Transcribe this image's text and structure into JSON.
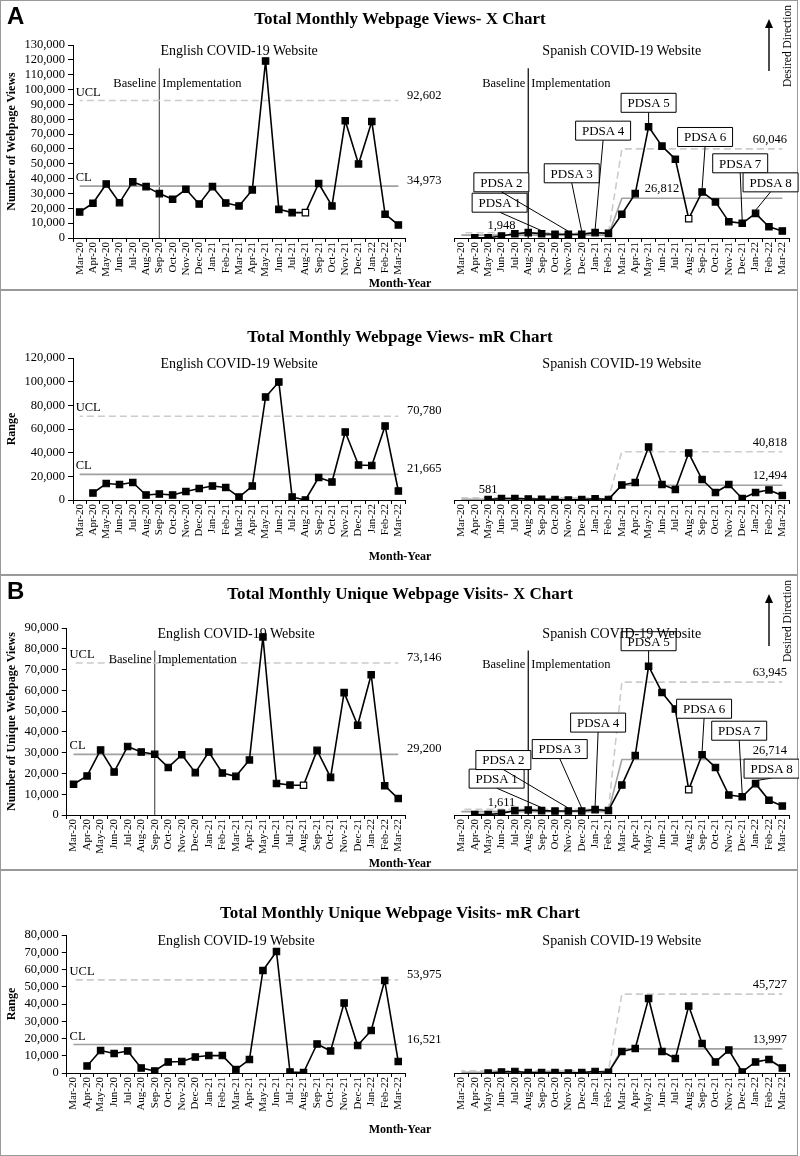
{
  "chart_data": [
    {
      "type": "line",
      "title": "Total Monthly Webpage Views- X Chart",
      "subtitle": "English COVID-19 Website",
      "xlabel": "Month-Year",
      "ylabel": "Number of Webpage Views",
      "categories": [
        "Mar-20",
        "Apr-20",
        "May-20",
        "Jun-20",
        "Jul-20",
        "Aug-20",
        "Sep-20",
        "Oct-20",
        "Nov-20",
        "Dec-20",
        "Jan-21",
        "Feb-21",
        "Mar-21",
        "Apr-21",
        "May-21",
        "Jun-21",
        "Jul-21",
        "Aug-21",
        "Sep-21",
        "Oct-21",
        "Nov-21",
        "Dec-21",
        "Jan-22",
        "Feb-22",
        "Mar-22"
      ],
      "ylim": [
        0,
        130000
      ],
      "yticks": [
        {
          "value": 0,
          "label": "0"
        },
        {
          "value": 10000,
          "label": "10,000"
        },
        {
          "value": 20000,
          "label": "20,000"
        },
        {
          "value": 30000,
          "label": "30,000"
        },
        {
          "value": 40000,
          "label": "40,000"
        },
        {
          "value": 50000,
          "label": "50,000"
        },
        {
          "value": 60000,
          "label": "60,000"
        },
        {
          "value": 70000,
          "label": "70,000"
        },
        {
          "value": 80000,
          "label": "80,000"
        },
        {
          "value": 90000,
          "label": "90,000"
        },
        {
          "value": 100000,
          "label": "100,000"
        },
        {
          "value": 110000,
          "label": "110,000"
        },
        {
          "value": 120000,
          "label": "120,000"
        },
        {
          "value": 130000,
          "label": "130,000"
        }
      ],
      "marker": "square",
      "series": [
        {
          "color": "#000000",
          "values": [
            17500,
            23400,
            36400,
            23800,
            37800,
            34600,
            29900,
            26100,
            32800,
            22900,
            34600,
            23600,
            21600,
            32400,
            119200,
            19300,
            17100,
            17100,
            36700,
            21600,
            79000,
            49900,
            78500,
            16000,
            8800
          ],
          "colors": [
            "#000000",
            "#000000",
            "#000000",
            "#000000",
            "#000000",
            "#000000",
            "#000000",
            "#000000",
            "#000000",
            "#000000",
            "#000000",
            "#000000",
            "#000000",
            "#000000",
            "#000000",
            "#000000",
            "#000000",
            "#ffffff",
            "#000000",
            "#000000",
            "#000000",
            "#000000",
            "#000000",
            "#000000",
            "#000000"
          ]
        },
        {
          "name": "CL",
          "color": "#a0a0a0",
          "marker": "none",
          "values": [
            34973,
            34973,
            34973,
            34973,
            34973,
            34973,
            34973,
            34973,
            34973,
            34973,
            34973,
            34973,
            34973,
            34973,
            34973,
            34973,
            34973,
            34973,
            34973,
            34973,
            34973,
            34973,
            34973,
            34973,
            34973
          ],
          "value_labels": [
            null,
            null,
            null,
            null,
            null,
            null,
            null,
            null,
            null,
            null,
            null,
            null,
            null,
            null,
            null,
            null,
            null,
            null,
            null,
            null,
            null,
            null,
            null,
            null,
            "34,973"
          ]
        },
        {
          "name": "UCL",
          "color": "#cccccc",
          "marker": "none",
          "line_style": "dashed",
          "values": [
            92602,
            92602,
            92602,
            92602,
            92602,
            92602,
            92602,
            92602,
            92602,
            92602,
            92602,
            92602,
            92602,
            92602,
            92602,
            92602,
            92602,
            92602,
            92602,
            92602,
            92602,
            92602,
            92602,
            92602,
            92602
          ],
          "value_labels": [
            null,
            null,
            null,
            null,
            null,
            null,
            null,
            null,
            null,
            null,
            null,
            null,
            null,
            null,
            null,
            null,
            null,
            null,
            null,
            null,
            null,
            null,
            null,
            null,
            "92,602"
          ]
        }
      ],
      "ref_lines": [
        {
          "axis": "x",
          "value": "Sep-20",
          "color": "#555555"
        }
      ],
      "annotations": [
        "A",
        "Baseline",
        "Implementation"
      ]
    },
    {
      "type": "line",
      "subtitle": "Spanish COVID-19 Website",
      "categories": [
        "Mar-20",
        "Apr-20",
        "May-20",
        "Jun-20",
        "Jul-20",
        "Aug-20",
        "Sep-20",
        "Oct-20",
        "Nov-20",
        "Dec-20",
        "Jan-21",
        "Feb-21",
        "Mar-21",
        "Apr-21",
        "May-21",
        "Jun-21",
        "Jul-21",
        "Aug-21",
        "Sep-21",
        "Oct-21",
        "Nov-21",
        "Dec-21",
        "Jan-22",
        "Feb-22",
        "Mar-22"
      ],
      "ylim": [
        0,
        130000
      ],
      "yticks": [
        {
          "value": 0,
          "label": "0"
        },
        {
          "value": 10000,
          "label": "10,000"
        },
        {
          "value": 20000,
          "label": "20,000"
        },
        {
          "value": 30000,
          "label": "30,000"
        },
        {
          "value": 40000,
          "label": "40,000"
        },
        {
          "value": 50000,
          "label": "50,000"
        },
        {
          "value": 60000,
          "label": "60,000"
        },
        {
          "value": 70000,
          "label": "70,000"
        },
        {
          "value": 80000,
          "label": "80,000"
        },
        {
          "value": 90000,
          "label": "90,000"
        },
        {
          "value": 100000,
          "label": "100,000"
        },
        {
          "value": 110000,
          "label": "110,000"
        },
        {
          "value": 120000,
          "label": "120,000"
        },
        {
          "value": 130000,
          "label": "130,000"
        }
      ],
      "tick_labels": "x",
      "marker": "square",
      "series": [
        {
          "color": "#000000",
          "values": [
            null,
            200,
            200,
            1300,
            2900,
            3600,
            2900,
            2500,
            2500,
            2500,
            3600,
            3100,
            16000,
            29900,
            74900,
            61900,
            53100,
            13000,
            31000,
            24300,
            11000,
            9900,
            16600,
            7600,
            4700
          ],
          "colors": [
            "#000000",
            "#000000",
            "#000000",
            "#000000",
            "#000000",
            "#000000",
            "#000000",
            "#000000",
            "#000000",
            "#000000",
            "#000000",
            "#000000",
            "#000000",
            "#000000",
            "#000000",
            "#000000",
            "#000000",
            "#ffffff",
            "#000000",
            "#000000",
            "#000000",
            "#000000",
            "#000000",
            "#000000",
            "#000000"
          ]
        },
        {
          "color": "#a0a0a0",
          "marker": "none",
          "values": [
            1948,
            1948,
            1948,
            1948,
            1948,
            1948,
            1948,
            1948,
            1948,
            1948,
            1948,
            1948,
            26812,
            26812,
            26812,
            26812,
            26812,
            26812,
            26812,
            26812,
            26812,
            26812,
            26812,
            26812,
            26812
          ],
          "value_labels": [
            null,
            null,
            null,
            "1,948",
            null,
            null,
            null,
            null,
            null,
            null,
            null,
            null,
            null,
            null,
            null,
            "26,812",
            null,
            null,
            null,
            null,
            null,
            null,
            null,
            null,
            null
          ]
        },
        {
          "color": "#cccccc",
          "marker": "none",
          "line_style": "dashed",
          "values": [
            3500,
            3500,
            3500,
            3500,
            3500,
            3500,
            3500,
            3500,
            3500,
            3500,
            3500,
            3500,
            60046,
            60046,
            60046,
            60046,
            60046,
            60046,
            60046,
            60046,
            60046,
            60046,
            60046,
            60046,
            60046
          ],
          "value_labels": [
            null,
            null,
            null,
            null,
            null,
            null,
            null,
            null,
            null,
            null,
            null,
            null,
            null,
            null,
            null,
            null,
            null,
            null,
            null,
            null,
            null,
            null,
            null,
            null,
            "60,046"
          ]
        }
      ],
      "ref_lines": [
        {
          "axis": "x",
          "value": "Aug-20",
          "color": "#000000"
        }
      ],
      "annotations": [
        "Baseline",
        "Implementation",
        "Desired Direction",
        {
          "text": "PDSA 1",
          "x": "Sep-20",
          "y": 2900
        },
        {
          "text": "PDSA 2",
          "x": "Nov-20",
          "y": 2500
        },
        {
          "text": "PDSA 3",
          "x": "Dec-20",
          "y": 2500
        },
        {
          "text": "PDSA 4",
          "x": "Jan-21",
          "y": 3600
        },
        {
          "text": "PDSA 5",
          "x": "May-21",
          "y": 74900
        },
        {
          "text": "PDSA 6",
          "x": "Sep-21",
          "y": 31000
        },
        {
          "text": "PDSA 7",
          "x": "Dec-21",
          "y": 9900
        },
        {
          "text": "PDSA 8",
          "x": "Jan-22",
          "y": 16600
        }
      ]
    },
    {
      "type": "line",
      "title": "Total Monthly Webpage Views- mR Chart",
      "subtitle": "English COVID-19 Website",
      "xlabel": "Month-Year",
      "ylabel": "Range",
      "categories": [
        "Mar-20",
        "Apr-20",
        "May-20",
        "Jun-20",
        "Jul-20",
        "Aug-20",
        "Sep-20",
        "Oct-20",
        "Nov-20",
        "Dec-20",
        "Jan-21",
        "Feb-21",
        "Mar-21",
        "Apr-21",
        "May-21",
        "Jun-21",
        "Jul-21",
        "Aug-21",
        "Sep-21",
        "Oct-21",
        "Nov-21",
        "Dec-21",
        "Jan-22",
        "Feb-22",
        "Mar-22"
      ],
      "ylim": [
        0,
        120000
      ],
      "yticks": [
        {
          "value": 0,
          "label": "0"
        },
        {
          "value": 20000,
          "label": "20,000"
        },
        {
          "value": 40000,
          "label": "40,000"
        },
        {
          "value": 60000,
          "label": "60,000"
        },
        {
          "value": 80000,
          "label": "80,000"
        },
        {
          "value": 100000,
          "label": "100,000"
        },
        {
          "value": 120000,
          "label": "120,000"
        }
      ],
      "marker": "square",
      "series": [
        {
          "color": "#000000",
          "values": [
            null,
            5900,
            13900,
            13100,
            14800,
            4200,
            5100,
            4200,
            7200,
            9700,
            11800,
            10600,
            2500,
            11800,
            87000,
            99700,
            2500,
            0,
            19000,
            15200,
            57500,
            29600,
            29200,
            62500,
            7600
          ]
        },
        {
          "name": "CL",
          "color": "#a0a0a0",
          "marker": "none",
          "values": [
            21665,
            21665,
            21665,
            21665,
            21665,
            21665,
            21665,
            21665,
            21665,
            21665,
            21665,
            21665,
            21665,
            21665,
            21665,
            21665,
            21665,
            21665,
            21665,
            21665,
            21665,
            21665,
            21665,
            21665,
            21665
          ],
          "value_labels": [
            null,
            null,
            null,
            null,
            null,
            null,
            null,
            null,
            null,
            null,
            null,
            null,
            null,
            null,
            null,
            null,
            null,
            null,
            null,
            null,
            null,
            null,
            null,
            null,
            "21,665"
          ]
        },
        {
          "name": "UCL",
          "color": "#cccccc",
          "marker": "none",
          "line_style": "dashed",
          "values": [
            70780,
            70780,
            70780,
            70780,
            70780,
            70780,
            70780,
            70780,
            70780,
            70780,
            70780,
            70780,
            70780,
            70780,
            70780,
            70780,
            70780,
            70780,
            70780,
            70780,
            70780,
            70780,
            70780,
            70780,
            70780
          ],
          "value_labels": [
            null,
            null,
            null,
            null,
            null,
            null,
            null,
            null,
            null,
            null,
            null,
            null,
            null,
            null,
            null,
            null,
            null,
            null,
            null,
            null,
            null,
            null,
            null,
            null,
            "70,780"
          ]
        }
      ]
    },
    {
      "type": "line",
      "subtitle": "Spanish COVID-19 Website",
      "categories": [
        "Mar-20",
        "Apr-20",
        "May-20",
        "Jun-20",
        "Jul-20",
        "Aug-20",
        "Sep-20",
        "Oct-20",
        "Nov-20",
        "Dec-20",
        "Jan-21",
        "Feb-21",
        "Mar-21",
        "Apr-21",
        "May-21",
        "Jun-21",
        "Jul-21",
        "Aug-21",
        "Sep-21",
        "Oct-21",
        "Nov-21",
        "Dec-21",
        "Jan-22",
        "Feb-22",
        "Mar-22"
      ],
      "ylim": [
        0,
        120000
      ],
      "yticks": [
        {
          "value": 0,
          "label": "0"
        },
        {
          "value": 20000,
          "label": "20,000"
        },
        {
          "value": 40000,
          "label": "40,000"
        },
        {
          "value": 60000,
          "label": "60,000"
        },
        {
          "value": 80000,
          "label": "80,000"
        },
        {
          "value": 100000,
          "label": "100,000"
        },
        {
          "value": 120000,
          "label": "120,000"
        }
      ],
      "tick_labels": "x",
      "marker": "square",
      "series": [
        {
          "color": "#000000",
          "values": [
            null,
            null,
            400,
            1300,
            1300,
            800,
            700,
            400,
            0,
            400,
            1100,
            500,
            12700,
            14800,
            44800,
            13100,
            8900,
            39700,
            17300,
            6300,
            13100,
            1300,
            6300,
            8500,
            3800
          ]
        },
        {
          "color": "#a0a0a0",
          "marker": "none",
          "values": [
            581,
            581,
            581,
            581,
            581,
            581,
            581,
            581,
            581,
            581,
            581,
            581,
            12494,
            12494,
            12494,
            12494,
            12494,
            12494,
            12494,
            12494,
            12494,
            12494,
            12494,
            12494,
            12494
          ],
          "value_labels": [
            null,
            null,
            "581",
            null,
            null,
            null,
            null,
            null,
            null,
            null,
            null,
            null,
            null,
            null,
            null,
            null,
            null,
            null,
            null,
            null,
            null,
            null,
            null,
            null,
            "12,494"
          ]
        },
        {
          "color": "#cccccc",
          "marker": "none",
          "line_style": "dashed",
          "values": [
            1900,
            1900,
            1900,
            1900,
            1900,
            1900,
            1900,
            1900,
            1900,
            1900,
            1900,
            1900,
            40818,
            40818,
            40818,
            40818,
            40818,
            40818,
            40818,
            40818,
            40818,
            40818,
            40818,
            40818,
            40818
          ],
          "value_labels": [
            null,
            null,
            null,
            null,
            null,
            null,
            null,
            null,
            null,
            null,
            null,
            null,
            null,
            null,
            null,
            null,
            null,
            null,
            null,
            null,
            null,
            null,
            null,
            null,
            "40,818"
          ]
        }
      ]
    },
    {
      "type": "line",
      "title": "Total Monthly Unique Webpage Visits- X Chart",
      "subtitle": "English COVID-19 Website",
      "xlabel": "Month-Year",
      "ylabel": "Number of Unique Webpage Views",
      "categories": [
        "Mar-20",
        "Apr-20",
        "May-20",
        "Jun-20",
        "Jul-20",
        "Aug-20",
        "Sep-20",
        "Oct-20",
        "Nov-20",
        "Dec-20",
        "Jan-21",
        "Feb-21",
        "Mar-21",
        "Apr-21",
        "May-21",
        "Jun-21",
        "Jul-21",
        "Aug-21",
        "Sep-21",
        "Oct-21",
        "Nov-21",
        "Dec-21",
        "Jan-22",
        "Feb-22",
        "Mar-22"
      ],
      "ylim": [
        0,
        90000
      ],
      "yticks": [
        {
          "value": 0,
          "label": "0"
        },
        {
          "value": 10000,
          "label": "10,000"
        },
        {
          "value": 20000,
          "label": "20,000"
        },
        {
          "value": 30000,
          "label": "30,000"
        },
        {
          "value": 40000,
          "label": "40,000"
        },
        {
          "value": 50000,
          "label": "50,000"
        },
        {
          "value": 60000,
          "label": "60,000"
        },
        {
          "value": 70000,
          "label": "70,000"
        },
        {
          "value": 80000,
          "label": "80,000"
        },
        {
          "value": 90000,
          "label": "90,000"
        }
      ],
      "marker": "square",
      "series": [
        {
          "color": "#000000",
          "values": [
            14800,
            18800,
            31300,
            20700,
            33000,
            30300,
            29200,
            22900,
            29000,
            20400,
            30300,
            20200,
            18600,
            26500,
            85700,
            15200,
            14400,
            14300,
            31100,
            18100,
            58900,
            43200,
            67500,
            14100,
            7900
          ],
          "colors": [
            "#000000",
            "#000000",
            "#000000",
            "#000000",
            "#000000",
            "#000000",
            "#000000",
            "#000000",
            "#000000",
            "#000000",
            "#000000",
            "#000000",
            "#000000",
            "#000000",
            "#000000",
            "#000000",
            "#000000",
            "#ffffff",
            "#000000",
            "#000000",
            "#000000",
            "#000000",
            "#000000",
            "#000000",
            "#000000"
          ]
        },
        {
          "name": "CL",
          "color": "#a0a0a0",
          "marker": "none",
          "values": [
            29200,
            29200,
            29200,
            29200,
            29200,
            29200,
            29200,
            29200,
            29200,
            29200,
            29200,
            29200,
            29200,
            29200,
            29200,
            29200,
            29200,
            29200,
            29200,
            29200,
            29200,
            29200,
            29200,
            29200,
            29200
          ],
          "value_labels": [
            null,
            null,
            null,
            null,
            null,
            null,
            null,
            null,
            null,
            null,
            null,
            null,
            null,
            null,
            null,
            null,
            null,
            null,
            null,
            null,
            null,
            null,
            null,
            null,
            "29,200"
          ]
        },
        {
          "name": "UCL",
          "color": "#cccccc",
          "marker": "none",
          "line_style": "dashed",
          "values": [
            73146,
            73146,
            73146,
            73146,
            73146,
            73146,
            73146,
            73146,
            73146,
            73146,
            73146,
            73146,
            73146,
            73146,
            73146,
            73146,
            73146,
            73146,
            73146,
            73146,
            73146,
            73146,
            73146,
            73146,
            73146
          ],
          "value_labels": [
            null,
            null,
            null,
            null,
            null,
            null,
            null,
            null,
            null,
            null,
            null,
            null,
            null,
            null,
            null,
            null,
            null,
            null,
            null,
            null,
            null,
            null,
            null,
            null,
            "73,146"
          ]
        }
      ],
      "ref_lines": [
        {
          "axis": "x",
          "value": "Sep-20",
          "color": "#555555"
        }
      ],
      "annotations": [
        "B",
        "Baseline",
        "Implementation"
      ]
    },
    {
      "type": "line",
      "subtitle": "Spanish COVID-19 Website",
      "categories": [
        "Mar-20",
        "Apr-20",
        "May-20",
        "Jun-20",
        "Jul-20",
        "Aug-20",
        "Sep-20",
        "Oct-20",
        "Nov-20",
        "Dec-20",
        "Jan-21",
        "Feb-21",
        "Mar-21",
        "Apr-21",
        "May-21",
        "Jun-21",
        "Jul-21",
        "Aug-21",
        "Sep-21",
        "Oct-21",
        "Nov-21",
        "Dec-21",
        "Jan-22",
        "Feb-22",
        "Mar-22"
      ],
      "ylim": [
        0,
        90000
      ],
      "yticks": [
        {
          "value": 0,
          "label": "0"
        },
        {
          "value": 10000,
          "label": "10,000"
        },
        {
          "value": 20000,
          "label": "20,000"
        },
        {
          "value": 30000,
          "label": "30,000"
        },
        {
          "value": 40000,
          "label": "40,000"
        },
        {
          "value": 50000,
          "label": "50,000"
        },
        {
          "value": 60000,
          "label": "60,000"
        },
        {
          "value": 70000,
          "label": "70,000"
        },
        {
          "value": 80000,
          "label": "80,000"
        },
        {
          "value": 90000,
          "label": "90,000"
        }
      ],
      "tick_labels": "x",
      "marker": "square",
      "series": [
        {
          "color": "#000000",
          "values": [
            null,
            200,
            200,
            800,
            2100,
            2400,
            2100,
            1900,
            1900,
            1900,
            2600,
            2200,
            14400,
            28600,
            71600,
            59000,
            51000,
            12200,
            29000,
            22900,
            9600,
            8800,
            15100,
            7100,
            4300
          ],
          "colors": [
            "#000000",
            "#000000",
            "#000000",
            "#000000",
            "#000000",
            "#000000",
            "#000000",
            "#000000",
            "#000000",
            "#000000",
            "#000000",
            "#000000",
            "#000000",
            "#000000",
            "#000000",
            "#000000",
            "#000000",
            "#ffffff",
            "#000000",
            "#000000",
            "#000000",
            "#000000",
            "#000000",
            "#000000",
            "#000000"
          ]
        },
        {
          "color": "#a0a0a0",
          "marker": "none",
          "values": [
            1611,
            1611,
            1611,
            1611,
            1611,
            1611,
            1611,
            1611,
            1611,
            1611,
            1611,
            1611,
            26714,
            26714,
            26714,
            26714,
            26714,
            26714,
            26714,
            26714,
            26714,
            26714,
            26714,
            26714,
            26714
          ],
          "value_labels": [
            null,
            null,
            null,
            "1,611",
            null,
            null,
            null,
            null,
            null,
            null,
            null,
            null,
            null,
            null,
            null,
            null,
            null,
            null,
            null,
            null,
            null,
            null,
            null,
            null,
            "26,714"
          ]
        },
        {
          "color": "#cccccc",
          "marker": "none",
          "line_style": "dashed",
          "values": [
            2700,
            2700,
            2700,
            2700,
            2700,
            2700,
            2700,
            2700,
            2700,
            2700,
            2700,
            2700,
            63945,
            63945,
            63945,
            63945,
            63945,
            63945,
            63945,
            63945,
            63945,
            63945,
            63945,
            63945,
            63945
          ],
          "value_labels": [
            null,
            null,
            null,
            null,
            null,
            null,
            null,
            null,
            null,
            null,
            null,
            null,
            null,
            null,
            null,
            null,
            null,
            null,
            null,
            null,
            null,
            null,
            null,
            null,
            "63,945"
          ]
        }
      ],
      "ref_lines": [
        {
          "axis": "x",
          "value": "Aug-20",
          "color": "#000000"
        }
      ],
      "annotations": [
        "Baseline",
        "Implementation",
        "Desired Direction",
        {
          "text": "PDSA 1",
          "x": "Sep-20",
          "y": 2100
        },
        {
          "text": "PDSA 2",
          "x": "Nov-20",
          "y": 1900
        },
        {
          "text": "PDSA 3",
          "x": "Dec-20",
          "y": 1900
        },
        {
          "text": "PDSA 4",
          "x": "Jan-21",
          "y": 2600
        },
        {
          "text": "PDSA 5",
          "x": "May-21",
          "y": 71600
        },
        {
          "text": "PDSA 6",
          "x": "Sep-21",
          "y": 29000
        },
        {
          "text": "PDSA 7",
          "x": "Dec-21",
          "y": 8800
        },
        {
          "text": "PDSA 8",
          "x": "Jan-22",
          "y": 15100
        }
      ]
    },
    {
      "type": "line",
      "title": "Total Monthly Unique Webpage Visits- mR Chart",
      "subtitle": "English COVID-19 Website",
      "xlabel": "Month-Year",
      "ylabel": "Range",
      "categories": [
        "Mar-20",
        "Apr-20",
        "May-20",
        "Jun-20",
        "Jul-20",
        "Aug-20",
        "Sep-20",
        "Oct-20",
        "Nov-20",
        "Dec-20",
        "Jan-21",
        "Feb-21",
        "Mar-21",
        "Apr-21",
        "May-21",
        "Jun-21",
        "Jul-21",
        "Aug-21",
        "Sep-21",
        "Oct-21",
        "Nov-21",
        "Dec-21",
        "Jan-22",
        "Feb-22",
        "Mar-22"
      ],
      "ylim": [
        0,
        80000
      ],
      "yticks": [
        {
          "value": 0,
          "label": "0"
        },
        {
          "value": 10000,
          "label": "10,000"
        },
        {
          "value": 20000,
          "label": "20,000"
        },
        {
          "value": 30000,
          "label": "30,000"
        },
        {
          "value": 40000,
          "label": "40,000"
        },
        {
          "value": 50000,
          "label": "50,000"
        },
        {
          "value": 60000,
          "label": "60,000"
        },
        {
          "value": 70000,
          "label": "70,000"
        },
        {
          "value": 80000,
          "label": "80,000"
        }
      ],
      "marker": "square",
      "series": [
        {
          "color": "#000000",
          "values": [
            null,
            4100,
            13000,
            11300,
            12800,
            2900,
            1200,
            6400,
            6700,
            9300,
            10100,
            10100,
            2000,
            7800,
            59400,
            70400,
            600,
            300,
            16800,
            12800,
            40600,
            15900,
            24600,
            53600,
            6700
          ]
        },
        {
          "name": "CL",
          "color": "#a0a0a0",
          "marker": "none",
          "values": [
            16521,
            16521,
            16521,
            16521,
            16521,
            16521,
            16521,
            16521,
            16521,
            16521,
            16521,
            16521,
            16521,
            16521,
            16521,
            16521,
            16521,
            16521,
            16521,
            16521,
            16521,
            16521,
            16521,
            16521,
            16521
          ],
          "value_labels": [
            null,
            null,
            null,
            null,
            null,
            null,
            null,
            null,
            null,
            null,
            null,
            null,
            null,
            null,
            null,
            null,
            null,
            null,
            null,
            null,
            null,
            null,
            null,
            null,
            "16,521"
          ]
        },
        {
          "name": "UCL",
          "color": "#cccccc",
          "marker": "none",
          "line_style": "dashed",
          "values": [
            53975,
            53975,
            53975,
            53975,
            53975,
            53975,
            53975,
            53975,
            53975,
            53975,
            53975,
            53975,
            53975,
            53975,
            53975,
            53975,
            53975,
            53975,
            53975,
            53975,
            53975,
            53975,
            53975,
            53975,
            53975
          ],
          "value_labels": [
            null,
            null,
            null,
            null,
            null,
            null,
            null,
            null,
            null,
            null,
            null,
            null,
            null,
            null,
            null,
            null,
            null,
            null,
            null,
            null,
            null,
            null,
            null,
            null,
            "53,975"
          ]
        }
      ]
    },
    {
      "type": "line",
      "subtitle": "Spanish COVID-19 Website",
      "categories": [
        "Mar-20",
        "Apr-20",
        "May-20",
        "Jun-20",
        "Jul-20",
        "Aug-20",
        "Sep-20",
        "Oct-20",
        "Nov-20",
        "Dec-20",
        "Jan-21",
        "Feb-21",
        "Mar-21",
        "Apr-21",
        "May-21",
        "Jun-21",
        "Jul-21",
        "Aug-21",
        "Sep-21",
        "Oct-21",
        "Nov-21",
        "Dec-21",
        "Jan-22",
        "Feb-22",
        "Mar-22"
      ],
      "ylim": [
        0,
        80000
      ],
      "yticks": [
        {
          "value": 0,
          "label": "0"
        },
        {
          "value": 10000,
          "label": "10,000"
        },
        {
          "value": 20000,
          "label": "20,000"
        },
        {
          "value": 30000,
          "label": "30,000"
        },
        {
          "value": 40000,
          "label": "40,000"
        },
        {
          "value": 50000,
          "label": "50,000"
        },
        {
          "value": 60000,
          "label": "60,000"
        },
        {
          "value": 70000,
          "label": "70,000"
        },
        {
          "value": 80000,
          "label": "80,000"
        }
      ],
      "tick_labels": "x",
      "marker": "square",
      "series": [
        {
          "color": "#000000",
          "values": [
            null,
            null,
            0,
            600,
            900,
            300,
            300,
            300,
            0,
            300,
            900,
            400,
            12500,
            14200,
            43200,
            12500,
            8400,
            38800,
            17100,
            6400,
            13300,
            600,
            6400,
            7800,
            2900
          ]
        },
        {
          "color": "#a0a0a0",
          "marker": "none",
          "values": [
            400,
            400,
            400,
            400,
            400,
            400,
            400,
            400,
            400,
            400,
            400,
            400,
            13997,
            13997,
            13997,
            13997,
            13997,
            13997,
            13997,
            13997,
            13997,
            13997,
            13997,
            13997,
            13997
          ],
          "value_labels": [
            null,
            null,
            null,
            null,
            null,
            null,
            null,
            null,
            null,
            null,
            null,
            null,
            null,
            null,
            null,
            null,
            null,
            null,
            null,
            null,
            null,
            null,
            null,
            null,
            "13,997"
          ]
        },
        {
          "color": "#cccccc",
          "marker": "none",
          "line_style": "dashed",
          "values": [
            1300,
            1300,
            1300,
            1300,
            1300,
            1300,
            1300,
            1300,
            1300,
            1300,
            1300,
            1300,
            45727,
            45727,
            45727,
            45727,
            45727,
            45727,
            45727,
            45727,
            45727,
            45727,
            45727,
            45727,
            45727
          ],
          "value_labels": [
            null,
            null,
            null,
            null,
            null,
            null,
            null,
            null,
            null,
            null,
            null,
            null,
            null,
            null,
            null,
            null,
            null,
            null,
            null,
            null,
            null,
            null,
            null,
            null,
            "45,727"
          ]
        }
      ]
    }
  ]
}
